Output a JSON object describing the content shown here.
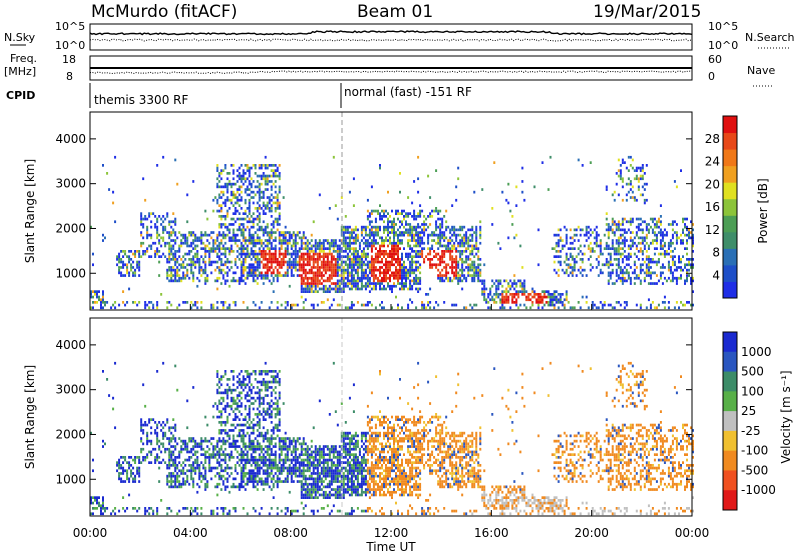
{
  "header": {
    "station": "McMurdo (fitACF)",
    "beam": "Beam 01",
    "date": "19/Mar/2015"
  },
  "summary_panel": {
    "left_labels": [
      "N.Sky",
      "Freq.",
      "[MHz]",
      "CPID"
    ],
    "left_ticks_nsky": [
      "10^5",
      "10^0"
    ],
    "left_ticks_freq": [
      "18",
      "8"
    ],
    "right_labels": [
      "N.Search",
      "Nave"
    ],
    "right_ticks_nsearch": [
      "10^5",
      "10^0"
    ],
    "right_ticks_nave": [
      "60",
      "0"
    ],
    "cpid_segments": [
      "themis 3300 RF",
      "normal (fast) -151 RF"
    ]
  },
  "chart_data": [
    {
      "type": "heatmap",
      "title": "",
      "xlabel": "",
      "ylabel": "Slant Range [km]",
      "y_ticks": [
        1000,
        2000,
        3000,
        4000
      ],
      "ylim": [
        180,
        4600
      ],
      "xlim_hours": [
        0,
        24
      ],
      "colorbar": {
        "label": "Power [dB]",
        "ticks": [
          4,
          8,
          12,
          16,
          20,
          24,
          28
        ],
        "colors": [
          "#1f2ee6",
          "#1e4fc8",
          "#2a6fb5",
          "#3f8e6a",
          "#4c9e55",
          "#8cc43a",
          "#e0e020",
          "#f0a020",
          "#f07818",
          "#e84818",
          "#e01010"
        ]
      }
    },
    {
      "type": "heatmap",
      "title": "",
      "xlabel": "Time UT",
      "ylabel": "Slant Range [km]",
      "y_ticks": [
        1000,
        2000,
        3000,
        4000
      ],
      "ylim": [
        180,
        4600
      ],
      "xlim_hours": [
        0,
        24
      ],
      "x_ticks": [
        "00:00",
        "04:00",
        "08:00",
        "12:00",
        "16:00",
        "20:00",
        "00:00"
      ],
      "colorbar": {
        "label": "Velocity [m s⁻¹]",
        "ticks": [
          "1000",
          "500",
          "100",
          "25",
          "-25",
          "-100",
          "-500",
          "-1000"
        ],
        "colors": [
          "#1a2ad0",
          "#2a56c0",
          "#3c8c68",
          "#58b048",
          "#c0c0c0",
          "#f0c030",
          "#f08a20",
          "#f05020",
          "#e01818"
        ]
      }
    }
  ],
  "colors": {
    "power_high": "#e01010",
    "power_low": "#1f2ee6",
    "vel_toward": "#1a2ad0",
    "vel_away": "#f08a20",
    "ground": "#c0c0c0"
  }
}
